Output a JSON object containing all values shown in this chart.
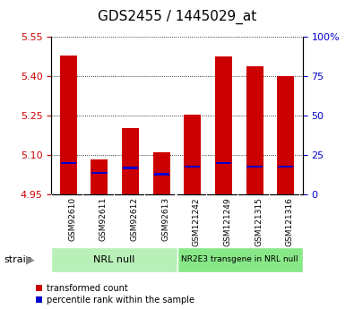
{
  "title": "GDS2455 / 1445029_at",
  "samples": [
    "GSM92610",
    "GSM92611",
    "GSM92612",
    "GSM92613",
    "GSM121242",
    "GSM121249",
    "GSM121315",
    "GSM121316"
  ],
  "transformed_count": [
    5.48,
    5.085,
    5.205,
    5.11,
    5.255,
    5.475,
    5.44,
    5.4
  ],
  "percentile_rank": [
    20,
    14,
    17,
    13,
    18,
    20,
    18,
    18
  ],
  "baseline": 4.95,
  "ylim_left": [
    4.95,
    5.55
  ],
  "ylim_right": [
    0,
    100
  ],
  "yticks_left": [
    4.95,
    5.1,
    5.25,
    5.4,
    5.55
  ],
  "yticks_right": [
    0,
    25,
    50,
    75,
    100
  ],
  "ytick_labels_right": [
    "0",
    "25",
    "50",
    "75",
    "100%"
  ],
  "groups": [
    {
      "label": "NRL null",
      "start": 0,
      "end": 4,
      "color": "#b8f0b8"
    },
    {
      "label": "NR2E3 transgene in NRL null",
      "start": 4,
      "end": 8,
      "color": "#88e888"
    }
  ],
  "strain_label": "strain",
  "legend": [
    {
      "label": "transformed count",
      "color": "#cc0000"
    },
    {
      "label": "percentile rank within the sample",
      "color": "#0000cc"
    }
  ],
  "bar_color": "#cc0000",
  "percentile_color": "#0000cc",
  "bar_width": 0.55,
  "bg_color": "#ffffff",
  "plot_bg": "#ffffff",
  "tick_label_color_left": "#cc0000",
  "tick_label_color_right": "#0000cc",
  "title_fontsize": 11,
  "tick_fontsize": 8,
  "xticklabel_bg": "#cccccc"
}
